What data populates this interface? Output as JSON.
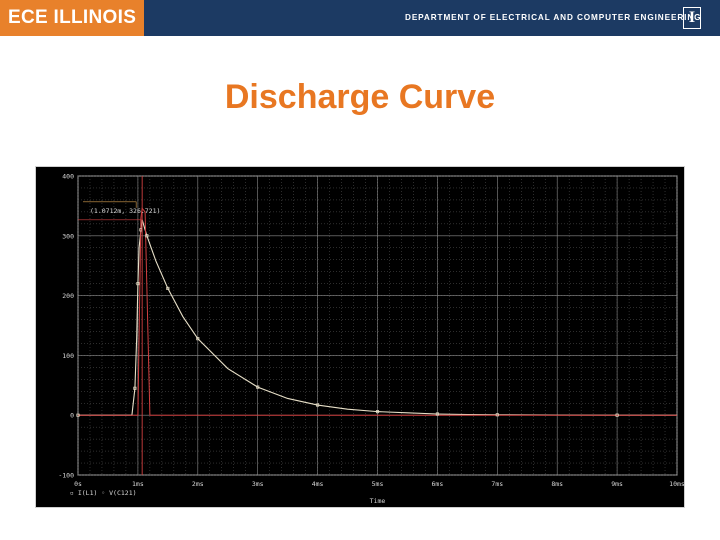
{
  "header": {
    "logo_text": "ECE ILLINOIS",
    "department": "DEPARTMENT OF ELECTRICAL AND COMPUTER ENGINEERING",
    "mark": "I",
    "colors": {
      "navy": "#1c3a63",
      "orange": "#e8812b"
    }
  },
  "slide": {
    "title": "Discharge Curve"
  },
  "chart_data": {
    "type": "line",
    "title": "",
    "xlabel": "Time",
    "ylabel": "",
    "xlim": [
      0,
      10
    ],
    "ylim": [
      -100,
      400
    ],
    "x_unit": "ms",
    "x_ticks": [
      "0s",
      "1ms",
      "2ms",
      "3ms",
      "4ms",
      "5ms",
      "6ms",
      "7ms",
      "8ms",
      "9ms",
      "10ms"
    ],
    "y_ticks": [
      "400",
      "300",
      "200",
      "100",
      "0",
      "-100"
    ],
    "grid": true,
    "legend_text": "▫ I(L1)  ◦ V(C121)",
    "cursor_label": "(1.0712m, 326.721)",
    "cursor": {
      "x": 1.0712,
      "y": 326.721
    },
    "series": [
      {
        "name": "V(C121)",
        "color": "#e8e0c8",
        "x": [
          0,
          0.9,
          0.95,
          0.98,
          1.0,
          1.02,
          1.05,
          1.0712,
          1.15,
          1.3,
          1.5,
          1.75,
          2.0,
          2.5,
          3.0,
          3.5,
          4.0,
          4.5,
          5.0,
          5.5,
          6.0,
          6.5,
          7.0,
          8.0,
          9.0,
          10.0
        ],
        "y": [
          0,
          0,
          45,
          130,
          220,
          280,
          310,
          326.7,
          300,
          258,
          212,
          165,
          128,
          78,
          47,
          28,
          17,
          10,
          6,
          4,
          2,
          1,
          0.7,
          0.3,
          0.1,
          0
        ]
      },
      {
        "name": "I(L1)",
        "color": "#d04040",
        "x": [
          0,
          1.0,
          1.05,
          1.0712,
          1.12,
          1.2,
          10.0
        ],
        "y": [
          0,
          0,
          330,
          346,
          340,
          0,
          0
        ]
      }
    ]
  }
}
